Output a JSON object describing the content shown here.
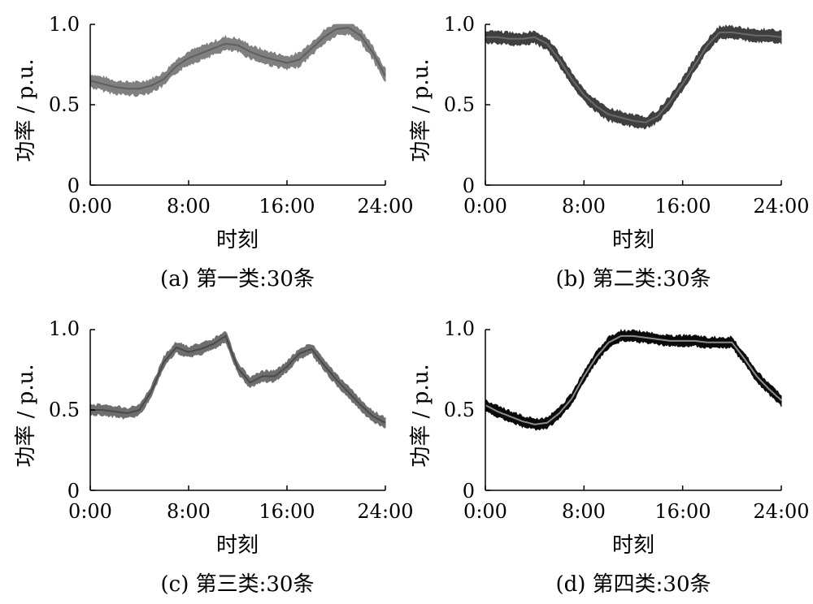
{
  "chart_data": [
    {
      "type": "line",
      "caption": "(a)  第一类:30条",
      "xlabel": "时刻",
      "ylabel": "功率 / p.u.",
      "xticks": [
        "0:00",
        "8:00",
        "16:00",
        "24:00"
      ],
      "yticks": [
        "0",
        "0.5",
        "1.0"
      ],
      "xlim": [
        0,
        24
      ],
      "ylim": [
        0,
        1.0
      ],
      "band_count": 30,
      "colors": {
        "band": "#808080",
        "mean": "#5f5f5f"
      },
      "x": [
        0,
        1,
        2,
        3,
        4,
        5,
        6,
        7,
        8,
        9,
        10,
        11,
        12,
        13,
        14,
        15,
        16,
        17,
        18,
        19,
        20,
        21,
        22,
        23,
        24
      ],
      "mean": [
        0.65,
        0.63,
        0.61,
        0.6,
        0.6,
        0.62,
        0.66,
        0.74,
        0.79,
        0.82,
        0.85,
        0.88,
        0.87,
        0.83,
        0.8,
        0.78,
        0.76,
        0.78,
        0.85,
        0.92,
        0.97,
        0.98,
        0.93,
        0.82,
        0.68
      ],
      "spread": 0.05
    },
    {
      "type": "line",
      "caption": "(b)  第二类:30条",
      "xlabel": "时刻",
      "ylabel": "功率 / p.u.",
      "xticks": [
        "0:00",
        "8:00",
        "16:00",
        "24:00"
      ],
      "yticks": [
        "0",
        "0.5",
        "1.0"
      ],
      "xlim": [
        0,
        24
      ],
      "ylim": [
        0,
        1.0
      ],
      "band_count": 30,
      "colors": {
        "band": "#3f3f3f",
        "mean": "#6a6a6a"
      },
      "x": [
        0,
        1,
        2,
        3,
        4,
        5,
        6,
        7,
        8,
        9,
        10,
        11,
        12,
        13,
        14,
        15,
        16,
        17,
        18,
        19,
        20,
        21,
        22,
        23,
        24
      ],
      "mean": [
        0.92,
        0.92,
        0.91,
        0.91,
        0.92,
        0.88,
        0.78,
        0.66,
        0.56,
        0.49,
        0.44,
        0.42,
        0.4,
        0.39,
        0.43,
        0.52,
        0.63,
        0.75,
        0.87,
        0.95,
        0.95,
        0.94,
        0.93,
        0.93,
        0.92
      ],
      "spread": 0.045
    },
    {
      "type": "line",
      "caption": "(c)  第三类:30条",
      "xlabel": "时刻",
      "ylabel": "功率 / p.u.",
      "xticks": [
        "0:00",
        "8:00",
        "16:00",
        "24:00"
      ],
      "yticks": [
        "0",
        "0.5",
        "1.0"
      ],
      "xlim": [
        0,
        24
      ],
      "ylim": [
        0,
        1.0
      ],
      "band_count": 30,
      "colors": {
        "band": "#6e6e6e",
        "mean": "#4a4a4a"
      },
      "x": [
        0,
        1,
        2,
        3,
        4,
        5,
        6,
        7,
        8,
        9,
        10,
        11,
        12,
        13,
        14,
        15,
        16,
        17,
        18,
        19,
        20,
        21,
        22,
        23,
        24
      ],
      "mean": [
        0.5,
        0.5,
        0.49,
        0.48,
        0.5,
        0.62,
        0.8,
        0.89,
        0.86,
        0.88,
        0.91,
        0.96,
        0.76,
        0.67,
        0.71,
        0.71,
        0.77,
        0.85,
        0.88,
        0.78,
        0.69,
        0.61,
        0.53,
        0.46,
        0.42
      ],
      "spread": 0.04
    },
    {
      "type": "line",
      "caption": "(d)  第四类:30条",
      "xlabel": "时刻",
      "ylabel": "功率 / p.u.",
      "xticks": [
        "0:00",
        "8:00",
        "16:00",
        "24:00"
      ],
      "yticks": [
        "0",
        "0.5",
        "1.0"
      ],
      "xlim": [
        0,
        24
      ],
      "ylim": [
        0,
        1.0
      ],
      "band_count": 30,
      "colors": {
        "band": "#0a0a0a",
        "mean": "#8c8c8c"
      },
      "x": [
        0,
        1,
        2,
        3,
        4,
        5,
        6,
        7,
        8,
        9,
        10,
        11,
        12,
        13,
        14,
        15,
        16,
        17,
        18,
        19,
        20,
        21,
        22,
        23,
        24
      ],
      "mean": [
        0.53,
        0.49,
        0.46,
        0.43,
        0.41,
        0.42,
        0.48,
        0.57,
        0.71,
        0.83,
        0.92,
        0.96,
        0.96,
        0.95,
        0.94,
        0.93,
        0.93,
        0.93,
        0.92,
        0.92,
        0.92,
        0.82,
        0.71,
        0.63,
        0.56
      ],
      "spread": 0.04
    }
  ]
}
